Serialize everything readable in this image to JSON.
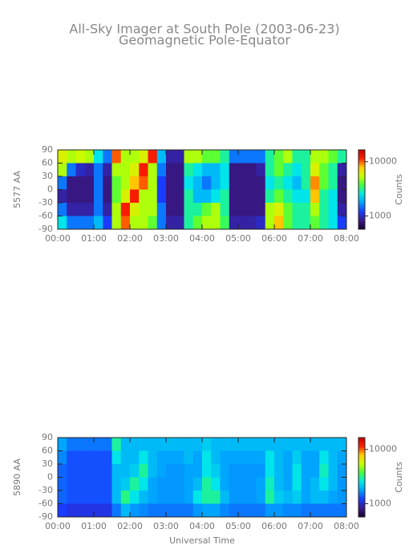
{
  "chart_data": [
    {
      "type": "heatmap",
      "title": "All-Sky Imager at South Pole (2003-06-23)",
      "subtitle": "Geomagnetic Pole-Equator",
      "ylabel": "5577 AA",
      "colorbar_label": "Counts",
      "xlim": [
        0,
        8
      ],
      "xticks": [
        {
          "value": 0,
          "label": "00:00"
        },
        {
          "value": 1,
          "label": "01:00"
        },
        {
          "value": 2,
          "label": "02:00"
        },
        {
          "value": 3,
          "label": "03:00"
        },
        {
          "value": 4,
          "label": "04:00"
        },
        {
          "value": 5,
          "label": "05:00"
        },
        {
          "value": 6,
          "label": "06:00"
        },
        {
          "value": 7,
          "label": "07:00"
        },
        {
          "value": 8,
          "label": "08:00"
        }
      ],
      "ylim": [
        -90,
        90
      ],
      "yticks": [
        90,
        60,
        30,
        0,
        -30,
        -60,
        -90
      ],
      "clim": [
        570,
        16500
      ],
      "cscale": "log",
      "cticks": [
        1000,
        10000
      ],
      "colormap": [
        "#1a0030",
        "#3a1a8a",
        "#1a3cff",
        "#00a0ff",
        "#00e8e8",
        "#40ff40",
        "#c8ff00",
        "#ffd000",
        "#ff2000",
        "#c80000"
      ],
      "x_edges": [
        0,
        0.25,
        0.5,
        0.75,
        1,
        1.25,
        1.5,
        1.75,
        2,
        2.25,
        2.5,
        2.75,
        3,
        3.25,
        3.5,
        3.75,
        4,
        4.25,
        4.5,
        4.75,
        5,
        5.25,
        5.5,
        5.75,
        6,
        6.25,
        6.5,
        6.75,
        7,
        7.25,
        7.5,
        7.75,
        8
      ],
      "y_edges": [
        90,
        60,
        30,
        0,
        -30,
        -60,
        -90
      ],
      "z": [
        [
          6000,
          5000,
          5500,
          5000,
          2500,
          1500,
          10000,
          5000,
          5000,
          6000,
          12000,
          2000,
          900,
          900,
          5000,
          5000,
          4000,
          4000,
          3000,
          1500,
          1500,
          1500,
          1500,
          3000,
          4000,
          5000,
          3000,
          3000,
          5000,
          5000,
          4000,
          3000
        ],
        [
          5000,
          1500,
          1000,
          900,
          1500,
          900,
          5000,
          5000,
          6000,
          12000,
          5000,
          1500,
          800,
          800,
          3000,
          2500,
          2000,
          2000,
          2500,
          800,
          800,
          800,
          900,
          3000,
          4000,
          3000,
          2500,
          3000,
          6000,
          4000,
          3000,
          900
        ],
        [
          1500,
          800,
          800,
          800,
          1500,
          800,
          4000,
          5000,
          8000,
          10000,
          5000,
          1200,
          800,
          800,
          2500,
          2000,
          1500,
          2000,
          2500,
          800,
          800,
          800,
          800,
          2500,
          3000,
          2500,
          2000,
          3000,
          9000,
          4000,
          3000,
          800
        ],
        [
          900,
          800,
          800,
          800,
          1500,
          800,
          4000,
          6000,
          12000,
          5000,
          5000,
          1200,
          800,
          800,
          3000,
          2000,
          2000,
          2500,
          3000,
          800,
          800,
          800,
          800,
          3000,
          4000,
          3000,
          2500,
          2500,
          8000,
          3000,
          2500,
          800
        ],
        [
          1500,
          900,
          900,
          900,
          1500,
          900,
          5000,
          12000,
          6000,
          5000,
          5000,
          1500,
          800,
          800,
          3000,
          3000,
          4000,
          5000,
          3000,
          800,
          800,
          800,
          800,
          5000,
          6000,
          4000,
          3000,
          3000,
          5000,
          3000,
          2500,
          900
        ],
        [
          2500,
          1500,
          1500,
          1500,
          2000,
          1200,
          5000,
          10000,
          5000,
          5000,
          4000,
          1500,
          900,
          900,
          3000,
          4000,
          5000,
          5000,
          3500,
          900,
          900,
          900,
          1000,
          5000,
          8000,
          4000,
          3000,
          3000,
          4000,
          3000,
          2500,
          1200
        ]
      ]
    },
    {
      "type": "heatmap",
      "ylabel": "5890 AA",
      "colorbar_label": "Counts",
      "xlabel": "Universal Time",
      "xlim": [
        0,
        8
      ],
      "xticks": [
        {
          "value": 0,
          "label": "00:00"
        },
        {
          "value": 1,
          "label": "01:00"
        },
        {
          "value": 2,
          "label": "02:00"
        },
        {
          "value": 3,
          "label": "03:00"
        },
        {
          "value": 4,
          "label": "04:00"
        },
        {
          "value": 5,
          "label": "05:00"
        },
        {
          "value": 6,
          "label": "06:00"
        },
        {
          "value": 7,
          "label": "07:00"
        },
        {
          "value": 8,
          "label": "08:00"
        }
      ],
      "ylim": [
        -90,
        90
      ],
      "yticks": [
        90,
        60,
        30,
        0,
        -30,
        -60,
        -90
      ],
      "clim": [
        570,
        16500
      ],
      "cscale": "log",
      "cticks": [
        1000,
        10000
      ],
      "colormap": [
        "#1a0030",
        "#3a1a8a",
        "#1a3cff",
        "#00a0ff",
        "#00e8e8",
        "#40ff40",
        "#c8ff00",
        "#ffd000",
        "#ff2000",
        "#c80000"
      ],
      "x_edges": [
        0,
        0.25,
        0.5,
        0.75,
        1,
        1.25,
        1.5,
        1.75,
        2,
        2.25,
        2.5,
        2.75,
        3,
        3.25,
        3.5,
        3.75,
        4,
        4.25,
        4.5,
        4.75,
        5,
        5.25,
        5.5,
        5.75,
        6,
        6.25,
        6.5,
        6.75,
        7,
        7.25,
        7.5,
        7.75,
        8
      ],
      "y_edges": [
        90,
        60,
        30,
        0,
        -30,
        -60,
        -90
      ],
      "z": [
        [
          1800,
          1500,
          1500,
          1500,
          1500,
          1500,
          3000,
          2000,
          2000,
          2000,
          2000,
          2000,
          2000,
          2000,
          2000,
          2000,
          2200,
          2000,
          2000,
          2000,
          2000,
          2000,
          2000,
          2000,
          2000,
          2000,
          2000,
          2000,
          2000,
          2000,
          2000,
          2000
        ],
        [
          1600,
          1300,
          1300,
          1300,
          1300,
          1300,
          2500,
          2000,
          2000,
          2500,
          2000,
          1800,
          1800,
          1800,
          2000,
          1800,
          2500,
          2000,
          1800,
          1800,
          1800,
          1800,
          1800,
          2500,
          2000,
          1800,
          2200,
          1800,
          1800,
          2500,
          2000,
          1800
        ],
        [
          1400,
          1300,
          1300,
          1300,
          1300,
          1300,
          2000,
          2000,
          2200,
          3000,
          2000,
          1800,
          1700,
          1700,
          1800,
          1800,
          2500,
          2200,
          1800,
          1700,
          1700,
          1700,
          1700,
          2500,
          2000,
          1800,
          2500,
          1800,
          1800,
          2800,
          2000,
          1700
        ],
        [
          1400,
          1300,
          1300,
          1300,
          1300,
          1300,
          2000,
          2200,
          3000,
          2500,
          1800,
          1700,
          1700,
          1700,
          1800,
          2000,
          3000,
          2500,
          1800,
          1700,
          1700,
          1700,
          1800,
          2800,
          2000,
          1800,
          2500,
          1800,
          2000,
          2500,
          2000,
          1700
        ],
        [
          1400,
          1300,
          1300,
          1300,
          1300,
          1300,
          2000,
          3200,
          2500,
          2000,
          1800,
          1700,
          1700,
          1700,
          1800,
          2500,
          3000,
          3000,
          2000,
          1700,
          1700,
          1700,
          1800,
          3000,
          2200,
          2000,
          2200,
          1800,
          2000,
          2000,
          1800,
          1700
        ],
        [
          1200,
          1100,
          1100,
          1100,
          1100,
          1100,
          1500,
          2000,
          1700,
          1600,
          1500,
          1500,
          1500,
          1500,
          1500,
          1700,
          1800,
          1800,
          1600,
          1500,
          1500,
          1500,
          1500,
          1700,
          1700,
          1600,
          1600,
          1500,
          1500,
          1500,
          1500,
          1500
        ]
      ]
    }
  ]
}
